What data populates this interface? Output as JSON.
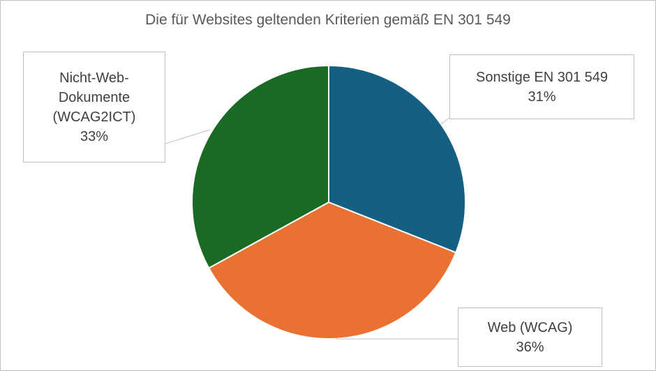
{
  "chart_data": {
    "type": "pie",
    "title": "Die für Websites geltenden Kriterien gemäß EN 301 549",
    "categories": [
      "Sonstige EN 301 549",
      "Web (WCAG)",
      "Nicht-Web-Dokumente (WCAG2ICT)"
    ],
    "values": [
      31,
      36,
      33
    ],
    "value_labels": [
      "31%",
      "36%",
      "33%"
    ],
    "colors": [
      "#156082",
      "#e97132",
      "#196b24"
    ]
  }
}
